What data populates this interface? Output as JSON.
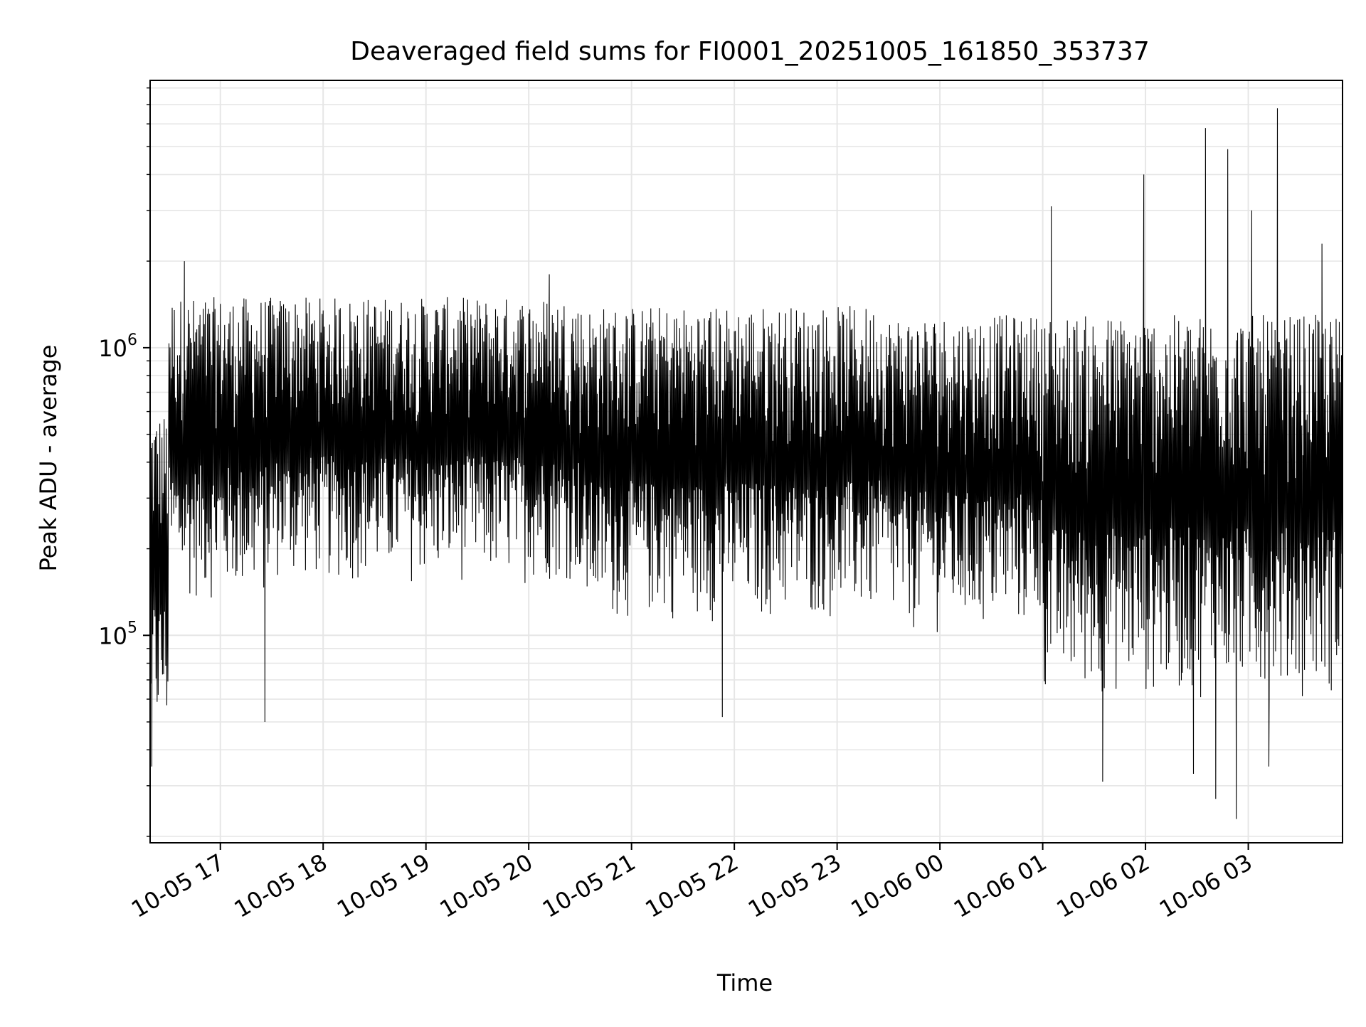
{
  "chart_data": {
    "type": "line",
    "title": "Deaveraged field sums for FI0001_20251005_161850_353737",
    "xlabel": "Time",
    "ylabel": "Peak ADU - average",
    "yscale": "log",
    "ylim": [
      19000,
      8500000
    ],
    "xlim": [
      "2025-10-05 16:19",
      "2025-10-06 03:55"
    ],
    "grid": true,
    "line_color": "#000000",
    "grid_color": "#e6e6e6",
    "x_ticks": [
      {
        "value": "2025-10-05 17:00",
        "label": "10-05 17"
      },
      {
        "value": "2025-10-05 18:00",
        "label": "10-05 18"
      },
      {
        "value": "2025-10-05 19:00",
        "label": "10-05 19"
      },
      {
        "value": "2025-10-05 20:00",
        "label": "10-05 20"
      },
      {
        "value": "2025-10-05 21:00",
        "label": "10-05 21"
      },
      {
        "value": "2025-10-05 22:00",
        "label": "10-05 22"
      },
      {
        "value": "2025-10-05 23:00",
        "label": "10-05 23"
      },
      {
        "value": "2025-10-06 00:00",
        "label": "10-06 00"
      },
      {
        "value": "2025-10-06 01:00",
        "label": "10-06 01"
      },
      {
        "value": "2025-10-06 02:00",
        "label": "10-06 02"
      },
      {
        "value": "2025-10-06 03:00",
        "label": "10-06 03"
      }
    ],
    "y_ticks": [
      {
        "value": 100000,
        "base": "10",
        "exp": "5"
      },
      {
        "value": 1000000,
        "base": "10",
        "exp": "6"
      }
    ],
    "series": [
      {
        "style": "dense-oscillation",
        "segments": [
          {
            "start": "2025-10-05 16:19",
            "end": "2025-10-05 16:30",
            "low": 40000,
            "high": 600000
          },
          {
            "start": "2025-10-05 16:30",
            "end": "2025-10-05 17:30",
            "low": 130000,
            "high": 1500000
          },
          {
            "start": "2025-10-05 17:30",
            "end": "2025-10-05 20:30",
            "low": 150000,
            "high": 1500000
          },
          {
            "start": "2025-10-05 20:30",
            "end": "2025-10-05 23:30",
            "low": 110000,
            "high": 1400000
          },
          {
            "start": "2025-10-05 23:30",
            "end": "2025-10-06 01:00",
            "low": 100000,
            "high": 1300000
          },
          {
            "start": "2025-10-06 01:00",
            "end": "2025-10-06 03:55",
            "low": 60000,
            "high": 1300000
          }
        ],
        "peaks": [
          {
            "x": "2025-10-05 16:39",
            "y": 2000000
          },
          {
            "x": "2025-10-05 20:12",
            "y": 1800000
          },
          {
            "x": "2025-10-06 01:05",
            "y": 3100000
          },
          {
            "x": "2025-10-06 01:59",
            "y": 4000000
          },
          {
            "x": "2025-10-06 02:35",
            "y": 5800000
          },
          {
            "x": "2025-10-06 02:48",
            "y": 4900000
          },
          {
            "x": "2025-10-06 03:02",
            "y": 3000000
          },
          {
            "x": "2025-10-06 03:17",
            "y": 6800000
          },
          {
            "x": "2025-10-06 03:43",
            "y": 2300000
          }
        ],
        "troughs": [
          {
            "x": "2025-10-05 16:20",
            "y": 35000
          },
          {
            "x": "2025-10-05 17:26",
            "y": 50000
          },
          {
            "x": "2025-10-05 21:53",
            "y": 52000
          },
          {
            "x": "2025-10-06 01:35",
            "y": 31000
          },
          {
            "x": "2025-10-06 02:28",
            "y": 33000
          },
          {
            "x": "2025-10-06 02:41",
            "y": 27000
          },
          {
            "x": "2025-10-06 02:53",
            "y": 23000
          },
          {
            "x": "2025-10-06 03:12",
            "y": 35000
          }
        ]
      }
    ]
  }
}
